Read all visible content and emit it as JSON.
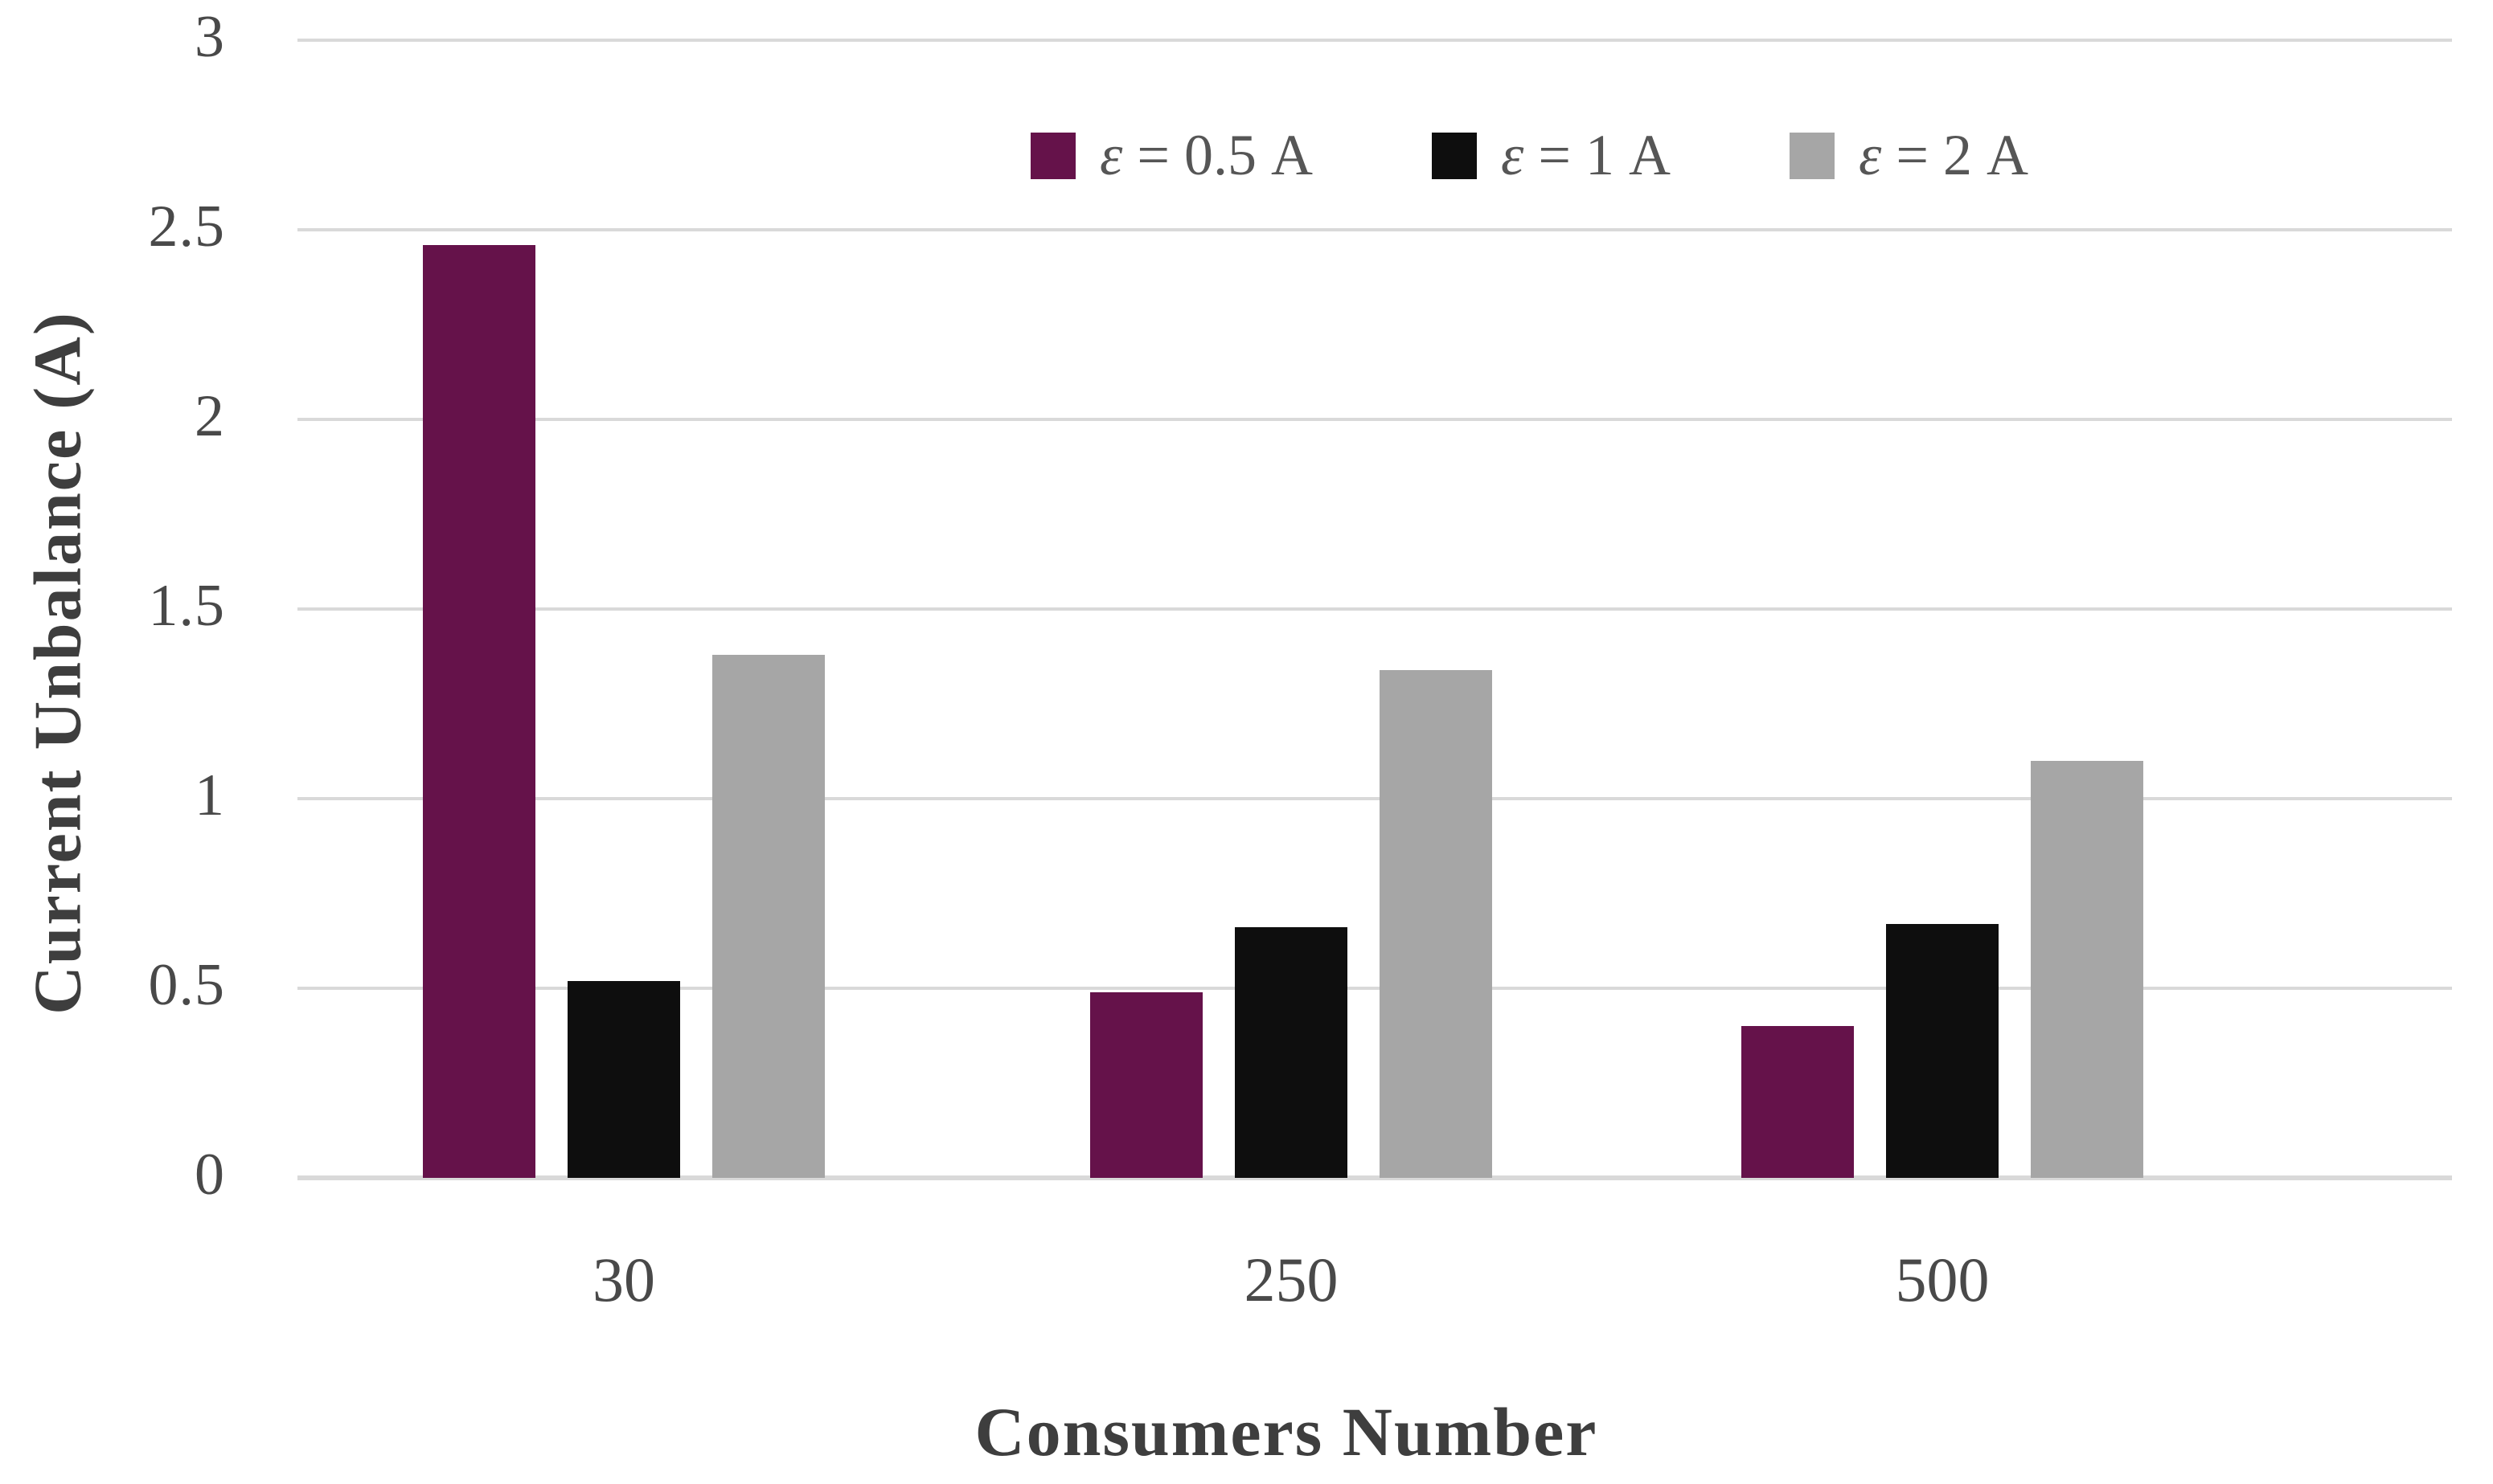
{
  "chart_data": {
    "type": "bar",
    "categories": [
      "30",
      "250",
      "500"
    ],
    "series": [
      {
        "name": "ε = 0.5 A",
        "color": "#65124a",
        "values": [
          2.46,
          0.49,
          0.4
        ]
      },
      {
        "name": "ε = 1 A",
        "color": "#0e0e0e",
        "values": [
          0.52,
          0.66,
          0.67
        ]
      },
      {
        "name": "ε = 2 A",
        "color": "#a6a6a6",
        "values": [
          1.38,
          1.34,
          1.1
        ]
      }
    ],
    "xlabel": "Consumers Number",
    "ylabel": "Current Unbalance (A)",
    "ylim": [
      0,
      3
    ],
    "y_ticks": [
      0,
      0.5,
      1,
      1.5,
      2,
      2.5,
      3
    ],
    "y_tick_labels": [
      "0",
      "0.5",
      "1",
      "1.5",
      "2",
      "2.5",
      "3"
    ],
    "grid": "horizontal",
    "legend_position": "top-right"
  },
  "colors": {
    "background": "#ffffff",
    "gridline": "#d9d9d9",
    "tick_text": "#494949",
    "axis_title_text": "#3e3e3e",
    "legend_text": "#565656"
  }
}
